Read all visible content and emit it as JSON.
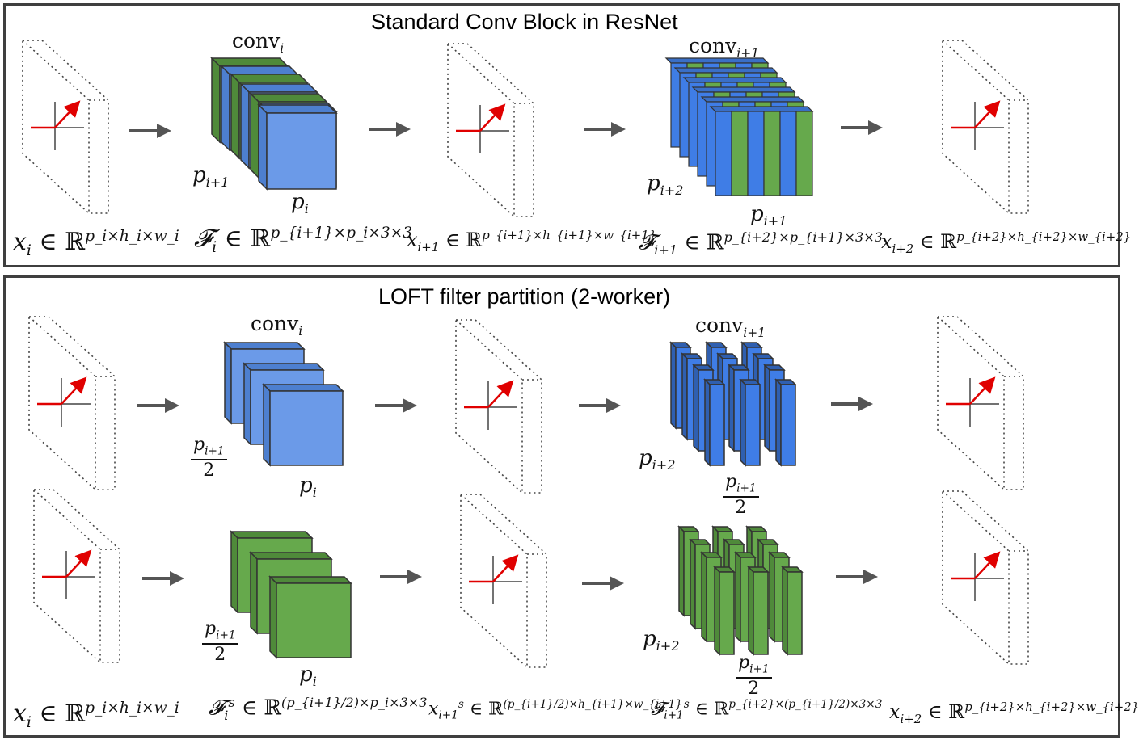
{
  "panels": {
    "top": {
      "title": "Standard Conv Block in ResNet",
      "conv_labels": [
        "conv",
        "i",
        "conv",
        "i+1"
      ],
      "dim_labels": {
        "conv_i_depth": "p",
        "conv_i_depth_sub": "i+1",
        "conv_i_side": "p",
        "conv_i_side_sub": "i",
        "conv_i1_depth": "p",
        "conv_i1_depth_sub": "i+2",
        "conv_i1_side": "p",
        "conv_i1_side_sub": "i+1"
      },
      "formulas": [
        {
          "base": "x",
          "sub": "i",
          "rest": " ∈ ℝ",
          "sup": "p_i×h_i×w_i"
        },
        {
          "base": "𝓕",
          "sub": "i",
          "rest": " ∈ ℝ",
          "sup": "p_{i+1}×p_i×3×3"
        },
        {
          "base": "x",
          "sub": "i+1",
          "rest": " ∈ ℝ",
          "sup": "p_{i+1}×h_{i+1}×w_{i+1}"
        },
        {
          "base": "𝓕",
          "sub": "i+1",
          "rest": " ∈ ℝ",
          "sup": "p_{i+2}×p_{i+1}×3×3"
        },
        {
          "base": "x",
          "sub": "i+2",
          "rest": " ∈ ℝ",
          "sup": "p_{i+2}×h_{i+2}×w_{i+2}"
        }
      ]
    },
    "bottom": {
      "title": "LOFT filter partition (2-worker)",
      "conv_labels": [
        "conv",
        "i",
        "conv",
        "i+1"
      ],
      "fraction_denominator": "2",
      "formulas": [
        {
          "base": "x",
          "sub": "i",
          "rest": " ∈ ℝ",
          "sup": "p_i×h_i×w_i"
        },
        {
          "base": "𝓕",
          "sub": "i",
          "supL": "s",
          "rest": " ∈ ℝ",
          "sup": "(p_{i+1}/2)×p_i×3×3"
        },
        {
          "base": "x",
          "sub": "i+1",
          "supL": "s",
          "rest": " ∈ ℝ",
          "sup": "(p_{i+1}/2)×h_{i+1}×w_{i+1}"
        },
        {
          "base": "𝓕",
          "sub": "i+1",
          "supL": "s",
          "rest": " ∈ ℝ",
          "sup": "p_{i+2}×(p_{i+1}/2)×3×3"
        },
        {
          "base": "x",
          "sub": "i+2",
          "rest": " ∈ ℝ",
          "sup": "p_{i+2}×h_{i+2}×w_{i+2}"
        }
      ]
    }
  },
  "colors": {
    "blue": "#6b9ae8",
    "blue_dark": "#3f7de6",
    "green": "#66a94c",
    "arrow": "#555555",
    "axis_red": "#e00000",
    "border": "#3f3f3f"
  },
  "icons": [
    "dotted-slab-icon",
    "right-arrow-icon",
    "axis-red-arrow-icon"
  ]
}
